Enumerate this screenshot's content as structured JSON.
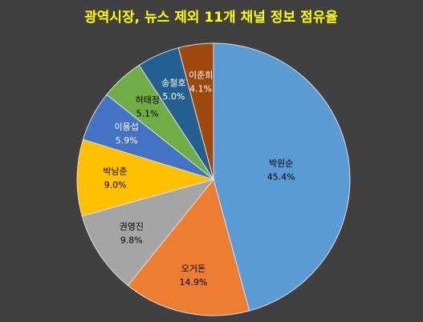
{
  "chart_data": {
    "type": "pie",
    "title": "광역시장, 뉴스 제외 11개 채널 정보 점유율",
    "categories": [
      "박원순",
      "오거돈",
      "권영진",
      "박남춘",
      "이용섭",
      "허태정",
      "송철호",
      "이춘희"
    ],
    "values": [
      45.4,
      14.9,
      9.8,
      9.0,
      5.9,
      5.1,
      5.0,
      4.1
    ],
    "value_labels": [
      "45.4%",
      "14.9%",
      "9.8%",
      "9.0%",
      "5.9%",
      "5.1%",
      "5.0%",
      "4.1%"
    ],
    "colors": [
      "#5b9bd5",
      "#ed7d31",
      "#a5a5a5",
      "#ffc000",
      "#4472c4",
      "#70ad47",
      "#255e91",
      "#9e480e"
    ]
  }
}
